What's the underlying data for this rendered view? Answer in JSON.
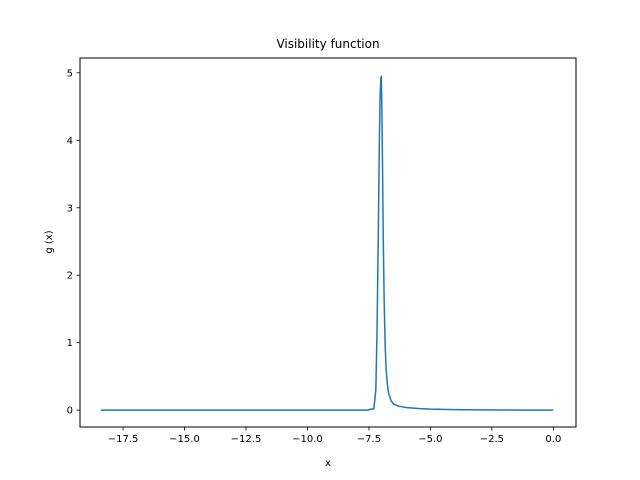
{
  "chart_data": {
    "type": "line",
    "title": "Visibility function",
    "xlabel": "x",
    "ylabel": "g (x)",
    "xlim": [
      -19.25,
      0.92
    ],
    "ylim": [
      -0.25,
      5.22
    ],
    "grid": false,
    "line_color": "#1f77b4",
    "x_ticks": [
      -17.5,
      -15.0,
      -12.5,
      -10.0,
      -7.5,
      -5.0,
      -2.5,
      0.0
    ],
    "x_tick_labels": [
      "−17.5",
      "−15.0",
      "−12.5",
      "−10.0",
      "−7.5",
      "−5.0",
      "−2.5",
      "0.0"
    ],
    "y_ticks": [
      0,
      1,
      2,
      3,
      4,
      5
    ],
    "y_tick_labels": [
      "0",
      "1",
      "2",
      "3",
      "4",
      "5"
    ],
    "series": [
      {
        "x": [
          -18.4,
          -15.0,
          -12.0,
          -9.0,
          -7.6,
          -7.3,
          -7.22,
          -7.17,
          -7.12,
          -7.08,
          -7.05,
          -7.02,
          -7.0,
          -6.98,
          -6.95,
          -6.92,
          -6.88,
          -6.84,
          -6.8,
          -6.75,
          -6.7,
          -6.6,
          -6.5,
          -6.3,
          -6.0,
          -5.5,
          -5.0,
          -4.0,
          -3.0,
          -2.0,
          -1.0,
          0.0
        ],
        "y": [
          0,
          0,
          0,
          0,
          0,
          0.02,
          0.3,
          1.2,
          2.6,
          3.9,
          4.6,
          4.9,
          4.95,
          4.6,
          3.7,
          2.6,
          1.6,
          0.95,
          0.6,
          0.38,
          0.25,
          0.14,
          0.09,
          0.06,
          0.04,
          0.025,
          0.015,
          0.008,
          0.004,
          0.002,
          0.001,
          0.0
        ]
      }
    ]
  }
}
